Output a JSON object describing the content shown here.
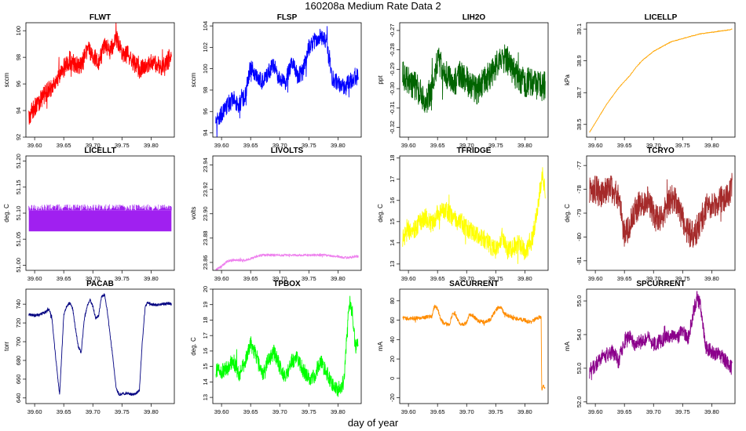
{
  "figure": {
    "title": "160208a   Medium Rate Data 2",
    "xlabel": "day of year"
  },
  "chart_data": [
    {
      "name": "FLWT",
      "type": "line",
      "title": "FLWT",
      "ylabel": "sccm",
      "color": "#ff0000",
      "xlim": [
        39.585,
        39.84
      ],
      "ylim": [
        92,
        100.6
      ],
      "xticks": [
        39.6,
        39.65,
        39.7,
        39.75,
        39.8
      ],
      "xtick_labels": [
        "39.60",
        "39.65",
        "39.70",
        "39.75",
        "39.80"
      ],
      "yticks": [
        92,
        94,
        96,
        98,
        100
      ],
      "ytick_labels": [
        "92",
        "94",
        "96",
        "98",
        "100"
      ],
      "x": [
        39.59,
        39.6,
        39.61,
        39.62,
        39.63,
        39.64,
        39.65,
        39.66,
        39.67,
        39.68,
        39.69,
        39.7,
        39.71,
        39.72,
        39.73,
        39.74,
        39.75,
        39.76,
        39.77,
        39.78,
        39.79,
        39.8,
        39.81,
        39.82,
        39.83,
        39.835
      ],
      "y": [
        93.5,
        94.3,
        94.8,
        95.4,
        95.8,
        96.3,
        97.2,
        97.8,
        97.4,
        97.3,
        98.6,
        98.2,
        97.6,
        98.8,
        98.5,
        99.4,
        98.4,
        98.2,
        97.6,
        97.1,
        97.3,
        97.6,
        97.5,
        97.2,
        97.8,
        98.4
      ],
      "noise": 1.4
    },
    {
      "name": "FLSP",
      "type": "line",
      "title": "FLSP",
      "ylabel": "sccm",
      "color": "#0000ff",
      "xlim": [
        39.585,
        39.84
      ],
      "ylim": [
        93.6,
        104.3
      ],
      "xticks": [
        39.6,
        39.65,
        39.7,
        39.75,
        39.8
      ],
      "xtick_labels": [
        "39.60",
        "39.65",
        "39.70",
        "39.75",
        "39.80"
      ],
      "yticks": [
        94,
        96,
        98,
        100,
        102,
        104
      ],
      "ytick_labels": [
        "94",
        "96",
        "98",
        "100",
        "102",
        "104"
      ],
      "x": [
        39.59,
        39.6,
        39.61,
        39.62,
        39.63,
        39.64,
        39.65,
        39.66,
        39.67,
        39.68,
        39.69,
        39.7,
        39.71,
        39.72,
        39.73,
        39.74,
        39.75,
        39.76,
        39.77,
        39.78,
        39.79,
        39.8,
        39.81,
        39.82,
        39.83,
        39.835
      ],
      "y": [
        95.0,
        95.8,
        96.6,
        97.2,
        96.6,
        97.4,
        100.3,
        99.2,
        98.8,
        99.7,
        100.3,
        99.0,
        98.8,
        100.6,
        99.4,
        99.7,
        102.0,
        102.6,
        103.0,
        102.4,
        99.2,
        98.6,
        98.4,
        98.8,
        99.0,
        99.6
      ],
      "noise": 1.6
    },
    {
      "name": "LIH2O",
      "type": "line",
      "title": "LIH2O",
      "ylabel": "ppt",
      "color": "#006400",
      "xlim": [
        39.585,
        39.84
      ],
      "ylim": [
        -0.325,
        -0.266
      ],
      "xticks": [
        39.6,
        39.65,
        39.7,
        39.75,
        39.8
      ],
      "xtick_labels": [
        "39.60",
        "39.65",
        "39.70",
        "39.75",
        "39.80"
      ],
      "yticks": [
        -0.32,
        -0.31,
        -0.3,
        -0.29,
        -0.28,
        -0.27
      ],
      "ytick_labels": [
        "-0.32",
        "-0.31",
        "-0.30",
        "-0.29",
        "-0.28",
        "-0.27"
      ],
      "x": [
        39.59,
        39.6,
        39.61,
        39.62,
        39.63,
        39.64,
        39.65,
        39.66,
        39.67,
        39.68,
        39.69,
        39.7,
        39.71,
        39.72,
        39.73,
        39.74,
        39.75,
        39.76,
        39.77,
        39.78,
        39.79,
        39.8,
        39.81,
        39.82,
        39.83,
        39.835
      ],
      "y": [
        -0.293,
        -0.296,
        -0.298,
        -0.302,
        -0.306,
        -0.3,
        -0.285,
        -0.291,
        -0.294,
        -0.297,
        -0.292,
        -0.296,
        -0.299,
        -0.301,
        -0.296,
        -0.293,
        -0.289,
        -0.284,
        -0.285,
        -0.291,
        -0.295,
        -0.297,
        -0.296,
        -0.298,
        -0.299,
        -0.298
      ],
      "noise": 0.015
    },
    {
      "name": "LICELLP",
      "type": "line",
      "title": "LICELLP",
      "ylabel": "kPa",
      "color": "#ffa500",
      "xlim": [
        39.585,
        39.84
      ],
      "ylim": [
        38.42,
        39.14
      ],
      "xticks": [
        39.6,
        39.65,
        39.7,
        39.75,
        39.8
      ],
      "xtick_labels": [
        "39.60",
        "39.65",
        "39.70",
        "39.75",
        "39.80"
      ],
      "yticks": [
        38.5,
        38.7,
        38.9,
        39.1
      ],
      "ytick_labels": [
        "38.5",
        "38.7",
        "38.9",
        "39.1"
      ],
      "x": [
        39.59,
        39.6,
        39.61,
        39.62,
        39.63,
        39.64,
        39.65,
        39.66,
        39.67,
        39.68,
        39.69,
        39.7,
        39.71,
        39.72,
        39.73,
        39.74,
        39.75,
        39.76,
        39.77,
        39.78,
        39.79,
        39.8,
        39.81,
        39.82,
        39.83,
        39.835
      ],
      "y": [
        38.45,
        38.51,
        38.57,
        38.63,
        38.68,
        38.73,
        38.77,
        38.81,
        38.86,
        38.9,
        38.93,
        38.96,
        38.98,
        39.0,
        39.02,
        39.03,
        39.04,
        39.05,
        39.06,
        39.07,
        39.075,
        39.08,
        39.085,
        39.09,
        39.095,
        39.1
      ],
      "noise": 0.004
    },
    {
      "name": "LICELLT",
      "type": "line",
      "title": "LICELLT",
      "ylabel": "deg. C",
      "color": "#a020f0",
      "xlim": [
        39.585,
        39.84
      ],
      "ylim": [
        50.99,
        51.21
      ],
      "xticks": [
        39.6,
        39.65,
        39.7,
        39.75,
        39.8
      ],
      "xtick_labels": [
        "39.60",
        "39.65",
        "39.70",
        "39.75",
        "39.80"
      ],
      "yticks": [
        51.0,
        51.05,
        51.1,
        51.15,
        51.2
      ],
      "ytick_labels": [
        "51.00",
        "51.05",
        "51.10",
        "51.15",
        "51.20"
      ],
      "x": [
        39.59,
        39.835
      ],
      "y": [
        51.085,
        51.085
      ],
      "band": [
        51.065,
        51.105
      ],
      "noise": 0.0
    },
    {
      "name": "LIVOLTS",
      "type": "line",
      "title": "LIVOLTS",
      "ylabel": "volts",
      "color": "#ee82ee",
      "xlim": [
        39.585,
        39.84
      ],
      "ylim": [
        23.8535,
        23.9475
      ],
      "xticks": [
        39.6,
        39.65,
        39.7,
        39.75,
        39.8
      ],
      "xtick_labels": [
        "39.60",
        "39.65",
        "39.70",
        "39.75",
        "39.80"
      ],
      "yticks": [
        23.86,
        23.88,
        23.9,
        23.92,
        23.94
      ],
      "ytick_labels": [
        "23.86",
        "23.88",
        "23.90",
        "23.92",
        "23.94"
      ],
      "x": [
        39.59,
        39.6,
        39.61,
        39.62,
        39.63,
        39.64,
        39.65,
        39.66,
        39.67,
        39.68,
        39.69,
        39.7,
        39.71,
        39.72,
        39.73,
        39.74,
        39.75,
        39.76,
        39.77,
        39.78,
        39.79,
        39.8,
        39.81,
        39.82,
        39.83,
        39.835
      ],
      "y": [
        23.8535,
        23.857,
        23.861,
        23.862,
        23.862,
        23.862,
        23.863,
        23.865,
        23.866,
        23.866,
        23.866,
        23.866,
        23.866,
        23.866,
        23.866,
        23.866,
        23.866,
        23.866,
        23.866,
        23.866,
        23.865,
        23.865,
        23.864,
        23.864,
        23.865,
        23.865
      ],
      "noise": 0.002
    },
    {
      "name": "TFRIDGE",
      "type": "line",
      "title": "TFRIDGE",
      "ylabel": "deg. C",
      "color": "#ffff00",
      "xlim": [
        39.585,
        39.84
      ],
      "ylim": [
        12.7,
        18.1
      ],
      "xticks": [
        39.6,
        39.65,
        39.7,
        39.75,
        39.8
      ],
      "xtick_labels": [
        "39.60",
        "39.65",
        "39.70",
        "39.75",
        "39.80"
      ],
      "yticks": [
        13,
        14,
        15,
        16,
        17,
        18
      ],
      "ytick_labels": [
        "13",
        "14",
        "15",
        "16",
        "17",
        "18"
      ],
      "x": [
        39.59,
        39.6,
        39.61,
        39.62,
        39.63,
        39.64,
        39.65,
        39.66,
        39.67,
        39.68,
        39.69,
        39.7,
        39.71,
        39.72,
        39.73,
        39.74,
        39.75,
        39.76,
        39.77,
        39.78,
        39.79,
        39.8,
        39.81,
        39.82,
        39.83,
        39.835
      ],
      "y": [
        14.2,
        14.6,
        14.6,
        15.0,
        15.2,
        14.9,
        15.4,
        15.6,
        15.4,
        15.1,
        15.0,
        14.7,
        14.5,
        14.4,
        14.2,
        13.9,
        13.7,
        14.3,
        13.6,
        13.8,
        14.0,
        13.6,
        13.9,
        15.2,
        17.3,
        16.5
      ],
      "noise": 0.9
    },
    {
      "name": "TCRYO",
      "type": "line",
      "title": "TCRYO",
      "ylabel": "deg. C",
      "color": "#a52a2a",
      "xlim": [
        39.585,
        39.84
      ],
      "ylim": [
        -81.4,
        -76.6
      ],
      "xticks": [
        39.6,
        39.65,
        39.7,
        39.75,
        39.8
      ],
      "xtick_labels": [
        "39.60",
        "39.65",
        "39.70",
        "39.75",
        "39.80"
      ],
      "yticks": [
        -81,
        -80,
        -79,
        -78,
        -77
      ],
      "ytick_labels": [
        "-81",
        "-80",
        "-79",
        "-78",
        "-77"
      ],
      "x": [
        39.59,
        39.6,
        39.61,
        39.62,
        39.63,
        39.64,
        39.65,
        39.66,
        39.67,
        39.68,
        39.69,
        39.7,
        39.71,
        39.72,
        39.73,
        39.74,
        39.75,
        39.76,
        39.77,
        39.78,
        39.79,
        39.8,
        39.81,
        39.82,
        39.83,
        39.835
      ],
      "y": [
        -78.1,
        -78.0,
        -78.2,
        -78.1,
        -78.0,
        -78.4,
        -79.9,
        -79.5,
        -78.8,
        -78.6,
        -78.4,
        -79.0,
        -79.3,
        -78.9,
        -78.4,
        -78.5,
        -79.3,
        -79.8,
        -79.9,
        -79.4,
        -78.8,
        -78.6,
        -78.5,
        -78.4,
        -78.1,
        -77.9
      ],
      "noise": 1.2
    },
    {
      "name": "PACAB",
      "type": "line",
      "title": "PACAB",
      "ylabel": "torr",
      "color": "#000080",
      "xlim": [
        39.585,
        39.84
      ],
      "ylim": [
        634,
        756
      ],
      "xticks": [
        39.6,
        39.65,
        39.7,
        39.75,
        39.8
      ],
      "xtick_labels": [
        "39.60",
        "39.65",
        "39.70",
        "39.75",
        "39.80"
      ],
      "yticks": [
        640,
        660,
        680,
        700,
        720,
        740
      ],
      "ytick_labels": [
        "640",
        "660",
        "680",
        "700",
        "720",
        "740"
      ],
      "x": [
        39.59,
        39.6,
        39.61,
        39.62,
        39.625,
        39.63,
        39.635,
        39.64,
        39.643,
        39.646,
        39.65,
        39.655,
        39.66,
        39.665,
        39.67,
        39.675,
        39.68,
        39.685,
        39.69,
        39.695,
        39.7,
        39.705,
        39.71,
        39.715,
        39.72,
        39.725,
        39.73,
        39.735,
        39.74,
        39.745,
        39.75,
        39.755,
        39.76,
        39.765,
        39.77,
        39.775,
        39.78,
        39.785,
        39.79,
        39.795,
        39.8,
        39.81,
        39.82,
        39.83,
        39.835
      ],
      "y": [
        729,
        728,
        729,
        732,
        735,
        724,
        690,
        660,
        643,
        680,
        728,
        738,
        741,
        737,
        715,
        695,
        688,
        722,
        738,
        745,
        738,
        725,
        728,
        748,
        750,
        732,
        705,
        680,
        650,
        644,
        644,
        645,
        645,
        644,
        644,
        645,
        648,
        700,
        738,
        742,
        740,
        739,
        740,
        741,
        740
      ],
      "noise": 3
    },
    {
      "name": "TPBOX",
      "type": "line",
      "title": "TPBOX",
      "ylabel": "deg. C",
      "color": "#00ff00",
      "xlim": [
        39.585,
        39.84
      ],
      "ylim": [
        12.6,
        20.0
      ],
      "xticks": [
        39.6,
        39.65,
        39.7,
        39.75,
        39.8
      ],
      "xtick_labels": [
        "39.60",
        "39.65",
        "39.70",
        "39.75",
        "39.80"
      ],
      "yticks": [
        13,
        14,
        15,
        16,
        17,
        18,
        19,
        20
      ],
      "ytick_labels": [
        "13",
        "14",
        "15",
        "16",
        "17",
        "18",
        "19",
        "20"
      ],
      "x": [
        39.59,
        39.6,
        39.61,
        39.62,
        39.63,
        39.64,
        39.65,
        39.66,
        39.67,
        39.68,
        39.69,
        39.7,
        39.71,
        39.72,
        39.73,
        39.74,
        39.75,
        39.76,
        39.77,
        39.78,
        39.79,
        39.8,
        39.81,
        39.815,
        39.82,
        39.825,
        39.83,
        39.835
      ],
      "y": [
        14.8,
        14.7,
        14.9,
        15.4,
        14.5,
        15.2,
        16.5,
        15.6,
        14.4,
        15.4,
        15.9,
        15.0,
        14.2,
        15.3,
        15.5,
        14.8,
        14.2,
        14.4,
        15.4,
        14.6,
        13.9,
        13.5,
        14.0,
        16.8,
        19.3,
        18.4,
        16.2,
        16.5
      ],
      "noise": 1.0
    },
    {
      "name": "SACURRENT",
      "type": "line",
      "title": "SACURRENT",
      "ylabel": "mA",
      "color": "#ff8c00",
      "xlim": [
        39.585,
        39.84
      ],
      "ylim": [
        -26,
        92
      ],
      "xticks": [
        39.6,
        39.65,
        39.7,
        39.75,
        39.8
      ],
      "xtick_labels": [
        "39.60",
        "39.65",
        "39.70",
        "39.75",
        "39.80"
      ],
      "yticks": [
        -20,
        0,
        20,
        40,
        60,
        80
      ],
      "ytick_labels": [
        "-20",
        "0",
        "20",
        "40",
        "60",
        "80"
      ],
      "x": [
        39.59,
        39.6,
        39.61,
        39.62,
        39.63,
        39.64,
        39.645,
        39.65,
        39.655,
        39.66,
        39.67,
        39.675,
        39.68,
        39.685,
        39.69,
        39.7,
        39.705,
        39.71,
        39.72,
        39.73,
        39.74,
        39.75,
        39.755,
        39.76,
        39.765,
        39.77,
        39.775,
        39.78,
        39.79,
        39.8,
        39.81,
        39.82,
        39.825,
        39.828,
        39.829,
        39.832,
        39.835
      ],
      "y": [
        62,
        62,
        62,
        62,
        63,
        64,
        75,
        72,
        62,
        57,
        55,
        65,
        67,
        60,
        55,
        57,
        66,
        65,
        59,
        58,
        60,
        70,
        74,
        72,
        67,
        65,
        64,
        62,
        61,
        60,
        58,
        62,
        63,
        62,
        -12,
        -8,
        -10
      ],
      "noise": 4
    },
    {
      "name": "SPCURRENT",
      "type": "line",
      "title": "SPCURRENT",
      "ylabel": "mA",
      "color": "#8b008b",
      "xlim": [
        39.585,
        39.84
      ],
      "ylim": [
        51.95,
        55.35
      ],
      "xticks": [
        39.6,
        39.65,
        39.7,
        39.75,
        39.8
      ],
      "xtick_labels": [
        "39.60",
        "39.65",
        "39.70",
        "39.75",
        "39.80"
      ],
      "yticks": [
        52.0,
        53.0,
        54.0,
        55.0
      ],
      "ytick_labels": [
        "52.0",
        "53.0",
        "54.0",
        "55.0"
      ],
      "x": [
        39.59,
        39.6,
        39.61,
        39.62,
        39.63,
        39.64,
        39.65,
        39.66,
        39.67,
        39.68,
        39.69,
        39.7,
        39.71,
        39.72,
        39.73,
        39.74,
        39.75,
        39.76,
        39.77,
        39.775,
        39.78,
        39.785,
        39.79,
        39.8,
        39.81,
        39.82,
        39.83,
        39.835
      ],
      "y": [
        52.9,
        53.1,
        53.3,
        53.4,
        53.5,
        53.2,
        53.8,
        53.9,
        53.7,
        53.8,
        53.9,
        53.7,
        53.8,
        53.9,
        54.0,
        53.9,
        54.1,
        53.9,
        54.8,
        55.1,
        54.9,
        54.2,
        53.6,
        53.5,
        53.4,
        53.3,
        53.1,
        53.0
      ],
      "noise": 0.45
    }
  ]
}
